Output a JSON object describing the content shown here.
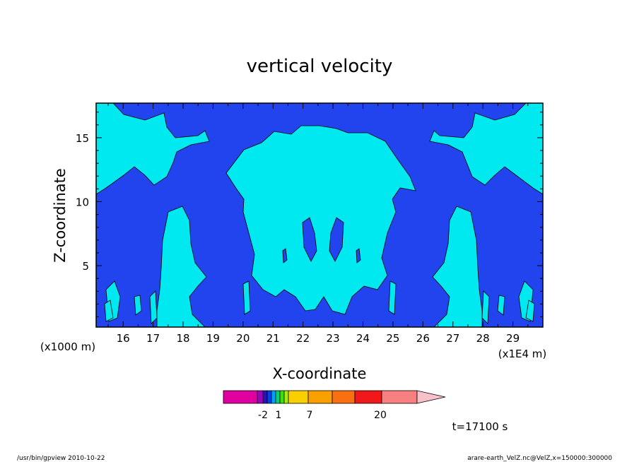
{
  "chart_data": {
    "type": "heatmap",
    "title": "vertical velocity",
    "xlabel": "X-coordinate",
    "ylabel": "Z-coordinate",
    "x_scale_note": "(x1E4 m)",
    "y_scale_note": "(x1000 m)",
    "xlim": [
      15.1,
      30
    ],
    "ylim": [
      0.2,
      17.7
    ],
    "x_ticks": [
      16,
      17,
      18,
      19,
      20,
      21,
      22,
      23,
      24,
      25,
      26,
      27,
      28,
      29
    ],
    "y_ticks": [
      5,
      10,
      15
    ],
    "colors": {
      "background_region": "#2244ee",
      "positive_region": "#00e8f0",
      "contour_line": "#000000"
    },
    "colorbar": {
      "colors": [
        "#e000a0",
        "#a000c0",
        "#3010b0",
        "#0040f0",
        "#00a0ff",
        "#00d080",
        "#40e000",
        "#a0f000",
        "#f8d000",
        "#f8a000",
        "#f87010",
        "#f01818",
        "#f88080",
        "#f8c0c8"
      ],
      "tick_labels": [
        "-2",
        "1",
        "7",
        "20"
      ]
    },
    "annotation_time": "t=17100 s"
  },
  "footer": {
    "left": "/usr/bin/gpview   2010-10-22",
    "right": "arare-earth_VelZ.nc@VelZ,x=150000:300000"
  }
}
